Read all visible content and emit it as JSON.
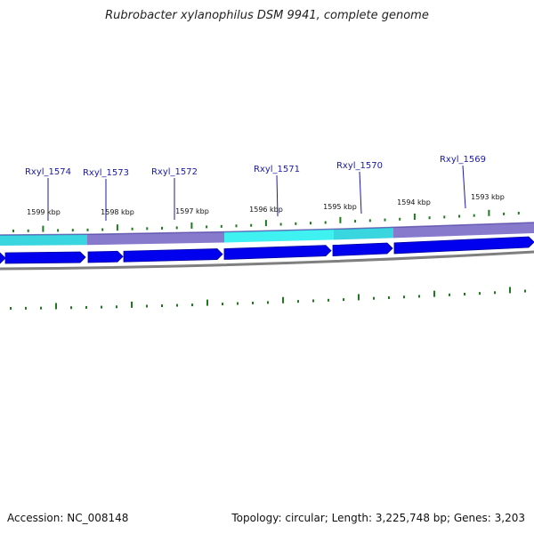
{
  "title": "Rubrobacter xylanophilus DSM 9941, complete genome",
  "footer": {
    "accession": "Accession: NC_008148",
    "stats": "Topology: circular; Length: 3,225,748 bp; Genes: 3,203"
  },
  "colors": {
    "gene_label": "#1a1aa6",
    "tick": "#1f7a1f",
    "cds": "#0000ee",
    "backbone": "#7f7f7f",
    "band_cyan": "#28d2dc",
    "band_purple": "#7d6fc8"
  },
  "genes": [
    {
      "name": "Rxyl_1574"
    },
    {
      "name": "Rxyl_1573"
    },
    {
      "name": "Rxyl_1572"
    },
    {
      "name": "Rxyl_1571"
    },
    {
      "name": "Rxyl_1570"
    },
    {
      "name": "Rxyl_1569"
    }
  ],
  "kbp_ticks": [
    {
      "label": "1599 kbp"
    },
    {
      "label": "1598 kbp"
    },
    {
      "label": "1597 kbp"
    },
    {
      "label": "1596 kbp"
    },
    {
      "label": "1595 kbp"
    },
    {
      "label": "1594 kbp"
    },
    {
      "label": "1593 kbp"
    }
  ]
}
